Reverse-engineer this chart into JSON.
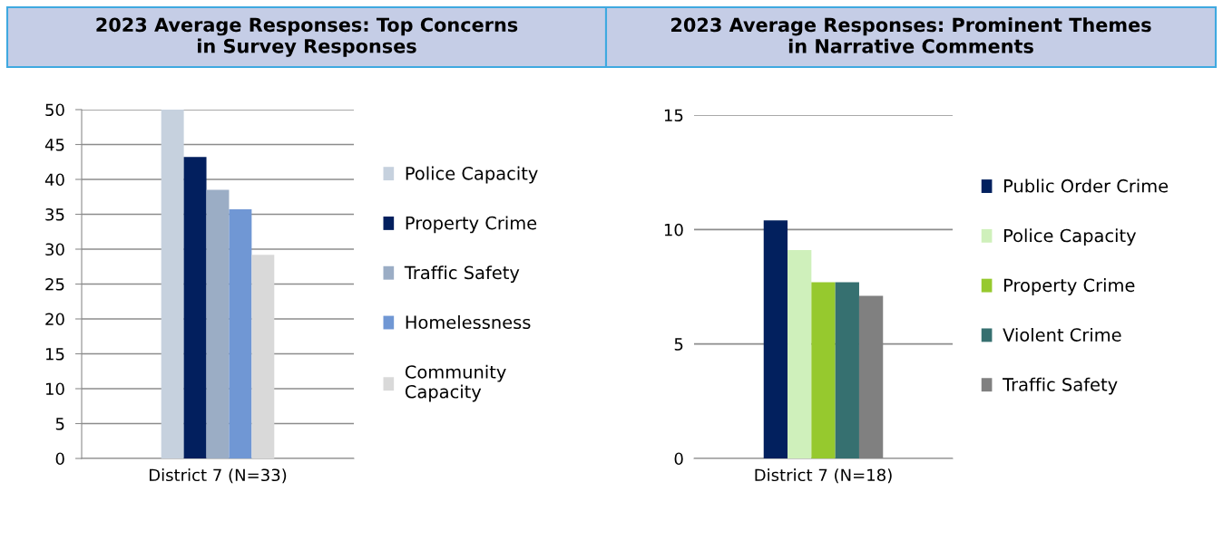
{
  "chart_data": [
    {
      "type": "bar",
      "title": "2023 Average Responses: Top Concerns\nin Survey Responses",
      "categories": [
        "District 7 (N=33)"
      ],
      "ylim": [
        0,
        50
      ],
      "yticks": [
        0,
        5,
        10,
        15,
        20,
        25,
        30,
        35,
        40,
        45,
        50
      ],
      "grid": "y",
      "legend": "right",
      "series": [
        {
          "name": "Police Capacity",
          "color": "#c6d1de",
          "values": [
            50
          ]
        },
        {
          "name": "Property Crime",
          "color": "#021f5e",
          "values": [
            43.2
          ]
        },
        {
          "name": "Traffic Safety",
          "color": "#9badc5",
          "values": [
            38.5
          ]
        },
        {
          "name": "Homelessness",
          "color": "#7097d4",
          "values": [
            35.7
          ]
        },
        {
          "name": "Community\nCapacity",
          "color": "#d9d9d9",
          "values": [
            29.2
          ]
        }
      ]
    },
    {
      "type": "bar",
      "title": "2023 Average Responses: Prominent Themes\nin Narrative Comments",
      "categories": [
        "District 7 (N=18)"
      ],
      "ylim": [
        0,
        15
      ],
      "yticks": [
        0,
        5,
        10,
        15
      ],
      "grid": "y",
      "legend": "right",
      "series": [
        {
          "name": "Public Order Crime",
          "color": "#02205e",
          "values": [
            10.4
          ]
        },
        {
          "name": "Police Capacity",
          "color": "#cff0bb",
          "values": [
            9.1
          ]
        },
        {
          "name": "Property Crime",
          "color": "#96c92e",
          "values": [
            7.7
          ]
        },
        {
          "name": "Violent Crime",
          "color": "#367070",
          "values": [
            7.7
          ]
        },
        {
          "name": "Traffic Safety",
          "color": "#808080",
          "values": [
            7.1
          ]
        }
      ]
    }
  ]
}
